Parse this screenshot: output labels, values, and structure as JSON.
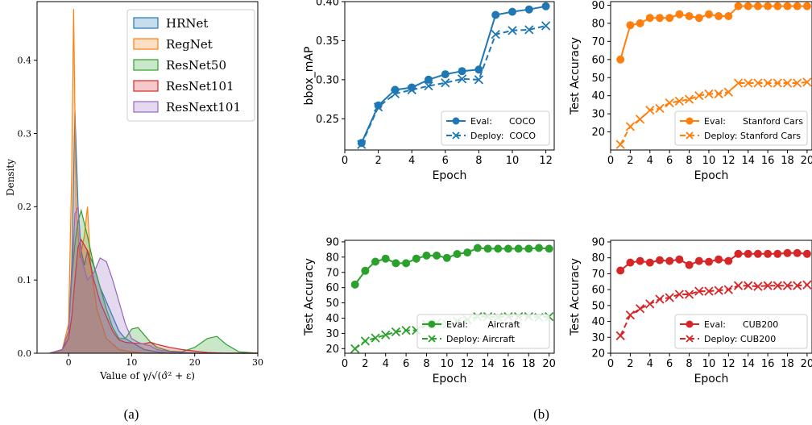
{
  "captions": {
    "a": "(a)",
    "b": "(b)"
  },
  "colors": {
    "blue": "#1f77b4",
    "orange": "#ff7f0e",
    "green": "#2ca02c",
    "red": "#d62728",
    "purple": "#9467bd"
  },
  "chart_data": [
    {
      "id": "kde",
      "type": "area",
      "xlabel": "Value of γ/√(σ̂² + ε)",
      "ylabel": "Density",
      "xlim": [
        -5,
        30
      ],
      "ylim": [
        0,
        0.48
      ],
      "xticks": [
        0,
        10,
        20,
        30
      ],
      "yticks": [
        0.0,
        0.1,
        0.2,
        0.3,
        0.4
      ],
      "legend_position": "top-right",
      "series": [
        {
          "name": "HRNet",
          "color": "#1f77b4",
          "x": [
            -3,
            -1,
            0,
            0.5,
            1,
            1.5,
            2,
            2.5,
            3,
            4,
            5,
            6,
            7,
            8,
            9,
            10,
            12,
            14,
            16,
            20,
            25,
            30
          ],
          "y": [
            0,
            0.005,
            0.03,
            0.12,
            0.33,
            0.2,
            0.14,
            0.12,
            0.14,
            0.12,
            0.09,
            0.07,
            0.05,
            0.03,
            0.02,
            0.015,
            0.005,
            0.002,
            0,
            0,
            0,
            0
          ]
        },
        {
          "name": "RegNet",
          "color": "#ff7f0e",
          "x": [
            -3,
            -1,
            0,
            0.5,
            0.8,
            1.2,
            1.8,
            2.5,
            3,
            3.5,
            4.5,
            6,
            8,
            10,
            12,
            14,
            16,
            20,
            25,
            30
          ],
          "y": [
            0,
            0.005,
            0.04,
            0.25,
            0.47,
            0.2,
            0.13,
            0.16,
            0.2,
            0.12,
            0.06,
            0.02,
            0.005,
            0.002,
            0,
            0,
            0,
            0,
            0,
            0
          ]
        },
        {
          "name": "ResNet50",
          "color": "#2ca02c",
          "x": [
            -3,
            -1,
            0,
            0.5,
            1,
            1.5,
            2,
            3,
            4,
            5,
            6,
            7,
            8,
            9,
            10,
            11,
            12,
            13,
            14,
            16,
            18,
            20,
            22,
            23.5,
            25,
            27,
            30
          ],
          "y": [
            0,
            0.005,
            0.03,
            0.1,
            0.15,
            0.18,
            0.195,
            0.16,
            0.12,
            0.09,
            0.06,
            0.035,
            0.02,
            0.02,
            0.033,
            0.035,
            0.025,
            0.015,
            0.008,
            0.003,
            0.002,
            0.008,
            0.02,
            0.023,
            0.012,
            0.002,
            0
          ]
        },
        {
          "name": "ResNet101",
          "color": "#d62728",
          "x": [
            -3,
            -1,
            0,
            0.5,
            1,
            1.5,
            2,
            3,
            4,
            5,
            6,
            7,
            8,
            9,
            10,
            12,
            13,
            14,
            16,
            18,
            20,
            22,
            25,
            30
          ],
          "y": [
            0,
            0.005,
            0.02,
            0.05,
            0.1,
            0.145,
            0.155,
            0.14,
            0.1,
            0.07,
            0.05,
            0.03,
            0.018,
            0.015,
            0.014,
            0.013,
            0.015,
            0.012,
            0.008,
            0.005,
            0.003,
            0.001,
            0,
            0
          ]
        },
        {
          "name": "ResNext101",
          "color": "#9467bd",
          "x": [
            -3,
            -1,
            0,
            0.5,
            1,
            1.5,
            2,
            3,
            4,
            5,
            6,
            7,
            8,
            9,
            10,
            11,
            12,
            13,
            14,
            16,
            20,
            30
          ],
          "y": [
            0,
            0.005,
            0.03,
            0.1,
            0.19,
            0.2,
            0.13,
            0.1,
            0.11,
            0.13,
            0.125,
            0.1,
            0.07,
            0.04,
            0.02,
            0.015,
            0.012,
            0.01,
            0.005,
            0.002,
            0,
            0
          ]
        }
      ]
    },
    {
      "id": "coco",
      "type": "line",
      "xlabel": "Epoch",
      "ylabel": "bbox_mAP",
      "xlim": [
        0,
        12.5
      ],
      "ylim": [
        0.21,
        0.4
      ],
      "xticks": [
        0,
        2,
        4,
        6,
        8,
        10,
        12
      ],
      "yticks": [
        0.25,
        0.3,
        0.35,
        0.4
      ],
      "ytick_labels": [
        "0.25",
        "0.30",
        "0.35",
        "0.40"
      ],
      "color": "#1f77b4",
      "legend_position": "lower-right",
      "x": [
        1,
        2,
        3,
        4,
        5,
        6,
        7,
        8,
        9,
        10,
        11,
        12
      ],
      "series": [
        {
          "name": "Eval:      COCO",
          "style": "solid",
          "marker": "o",
          "values": [
            0.219,
            0.267,
            0.287,
            0.29,
            0.3,
            0.307,
            0.311,
            0.313,
            0.383,
            0.387,
            0.39,
            0.394
          ]
        },
        {
          "name": "Deploy:  COCO",
          "style": "dashed",
          "marker": "x",
          "values": [
            0.217,
            0.265,
            0.282,
            0.287,
            0.292,
            0.296,
            0.301,
            0.3,
            0.358,
            0.363,
            0.364,
            0.369
          ]
        }
      ]
    },
    {
      "id": "cars",
      "type": "line",
      "xlabel": "Epoch",
      "ylabel": "Test Accuracy",
      "xlim": [
        0,
        20.5
      ],
      "ylim": [
        10,
        92
      ],
      "xticks": [
        0,
        2,
        4,
        6,
        8,
        10,
        12,
        14,
        16,
        18,
        20
      ],
      "yticks": [
        20,
        30,
        40,
        50,
        60,
        70,
        80,
        90
      ],
      "color": "#ff7f0e",
      "legend_position": "lower-right",
      "x": [
        1,
        2,
        3,
        4,
        5,
        6,
        7,
        8,
        9,
        10,
        11,
        12,
        13,
        14,
        15,
        16,
        17,
        18,
        19,
        20
      ],
      "series": [
        {
          "name": "Eval:      Stanford Cars",
          "style": "solid",
          "marker": "o",
          "values": [
            60,
            79,
            80,
            83,
            83,
            83,
            85,
            84,
            83,
            85,
            84,
            84,
            89.5,
            89.5,
            89.5,
            89.5,
            89.5,
            89.5,
            89.5,
            89.5
          ]
        },
        {
          "name": "Deploy: Stanford Cars",
          "style": "dashed",
          "marker": "x",
          "values": [
            13,
            23,
            27,
            32,
            33,
            36,
            37,
            38,
            40,
            41,
            41,
            42,
            47,
            47,
            47,
            47,
            47,
            47,
            47,
            47.5
          ]
        }
      ]
    },
    {
      "id": "aircraft",
      "type": "line",
      "xlabel": "Epoch",
      "ylabel": "Test Accuracy",
      "xlim": [
        0,
        20.5
      ],
      "ylim": [
        17,
        91
      ],
      "xticks": [
        0,
        2,
        4,
        6,
        8,
        10,
        12,
        14,
        16,
        18,
        20
      ],
      "yticks": [
        20,
        30,
        40,
        50,
        60,
        70,
        80,
        90
      ],
      "color": "#2ca02c",
      "legend_position": "lower-right",
      "x": [
        1,
        2,
        3,
        4,
        5,
        6,
        7,
        8,
        9,
        10,
        11,
        12,
        13,
        14,
        15,
        16,
        17,
        18,
        19,
        20
      ],
      "series": [
        {
          "name": "Eval:       Aircraft",
          "style": "solid",
          "marker": "o",
          "values": [
            62,
            71,
            77,
            79,
            76,
            76,
            79,
            81,
            81,
            79.5,
            82,
            83,
            86,
            85.5,
            85.5,
            85.5,
            85.5,
            85.5,
            86,
            85.5
          ]
        },
        {
          "name": "Deploy: Aircraft",
          "style": "dashed",
          "marker": "x",
          "values": [
            20,
            25,
            27,
            29,
            31,
            32,
            32,
            36,
            37,
            36,
            38,
            39,
            41,
            41,
            40.5,
            41,
            41,
            41,
            40.5,
            41
          ]
        }
      ]
    },
    {
      "id": "cub",
      "type": "line",
      "xlabel": "Epoch",
      "ylabel": "Test Accuracy",
      "xlim": [
        0,
        20.5
      ],
      "ylim": [
        20,
        91
      ],
      "xticks": [
        0,
        2,
        4,
        6,
        8,
        10,
        12,
        14,
        16,
        18,
        20
      ],
      "yticks": [
        20,
        30,
        40,
        50,
        60,
        70,
        80,
        90
      ],
      "color": "#d62728",
      "legend_position": "lower-right",
      "x": [
        1,
        2,
        3,
        4,
        5,
        6,
        7,
        8,
        9,
        10,
        11,
        12,
        13,
        14,
        15,
        16,
        17,
        18,
        19,
        20
      ],
      "series": [
        {
          "name": "Eval:      CUB200",
          "style": "solid",
          "marker": "o",
          "values": [
            72,
            77,
            78,
            77,
            78.5,
            78,
            79,
            75.5,
            78,
            77.5,
            79,
            78,
            82.5,
            82.5,
            82.5,
            82.5,
            82.5,
            83,
            83,
            82.5
          ]
        },
        {
          "name": "Deploy: CUB200",
          "style": "dashed",
          "marker": "x",
          "values": [
            31,
            44,
            48,
            51,
            54,
            55,
            57,
            57,
            59,
            59,
            59.5,
            60,
            62.5,
            62.5,
            62,
            62.5,
            62.5,
            62.5,
            62.5,
            63
          ]
        }
      ]
    }
  ]
}
